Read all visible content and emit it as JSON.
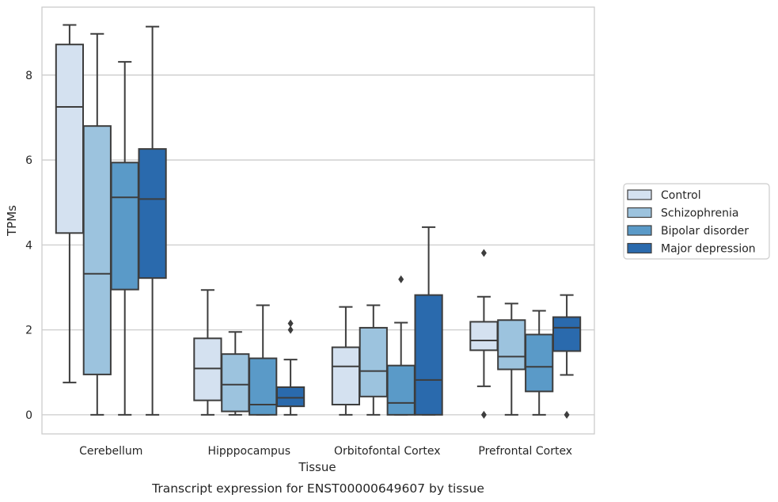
{
  "chart_data": {
    "type": "box",
    "caption": "Transcript expression for ENST00000649607 by tissue",
    "xlabel": "Tissue",
    "ylabel": "TPMs",
    "ylim": [
      -0.45,
      9.6
    ],
    "yticks": [
      0,
      2,
      4,
      6,
      8
    ],
    "grid": "horizontal",
    "legend_position": "right",
    "categories": [
      "Cerebellum",
      "Hipppocampus",
      "Orbitofontal Cortex",
      "Prefrontal Cortex"
    ],
    "series": [
      {
        "name": "Control",
        "color": "#d4e1f0",
        "boxes": [
          {
            "whislo": 0.76,
            "q1": 4.28,
            "med": 7.25,
            "q3": 8.72,
            "whishi": 9.18,
            "fliers": []
          },
          {
            "whislo": 0.0,
            "q1": 0.34,
            "med": 1.09,
            "q3": 1.8,
            "whishi": 2.94,
            "fliers": []
          },
          {
            "whislo": 0.0,
            "q1": 0.24,
            "med": 1.14,
            "q3": 1.59,
            "whishi": 2.54,
            "fliers": []
          },
          {
            "whislo": 0.67,
            "q1": 1.52,
            "med": 1.75,
            "q3": 2.19,
            "whishi": 2.78,
            "fliers": [
              0.0,
              3.81
            ]
          }
        ]
      },
      {
        "name": "Schizophrenia",
        "color": "#9cc3de",
        "boxes": [
          {
            "whislo": 0.0,
            "q1": 0.95,
            "med": 3.32,
            "q3": 6.8,
            "whishi": 8.97,
            "fliers": []
          },
          {
            "whislo": 0.0,
            "q1": 0.08,
            "med": 0.71,
            "q3": 1.43,
            "whishi": 1.95,
            "fliers": []
          },
          {
            "whislo": 0.0,
            "q1": 0.43,
            "med": 1.03,
            "q3": 2.05,
            "whishi": 2.58,
            "fliers": []
          },
          {
            "whislo": 0.0,
            "q1": 1.07,
            "med": 1.37,
            "q3": 2.23,
            "whishi": 2.62,
            "fliers": []
          }
        ]
      },
      {
        "name": "Bipolar disorder",
        "color": "#5a9ac8",
        "boxes": [
          {
            "whislo": 0.0,
            "q1": 2.95,
            "med": 5.12,
            "q3": 5.94,
            "whishi": 8.31,
            "fliers": []
          },
          {
            "whislo": 0.0,
            "q1": 0.0,
            "med": 0.24,
            "q3": 1.33,
            "whishi": 2.58,
            "fliers": []
          },
          {
            "whislo": 0.0,
            "q1": 0.0,
            "med": 0.28,
            "q3": 1.16,
            "whishi": 2.17,
            "fliers": [
              3.19
            ]
          },
          {
            "whislo": 0.0,
            "q1": 0.55,
            "med": 1.13,
            "q3": 1.89,
            "whishi": 2.45,
            "fliers": []
          }
        ]
      },
      {
        "name": "Major depression",
        "color": "#2a6aad",
        "boxes": [
          {
            "whislo": 0.0,
            "q1": 3.22,
            "med": 5.08,
            "q3": 6.26,
            "whishi": 9.14,
            "fliers": []
          },
          {
            "whislo": 0.0,
            "q1": 0.2,
            "med": 0.4,
            "q3": 0.65,
            "whishi": 1.3,
            "fliers": [
              2.0,
              2.15
            ]
          },
          {
            "whislo": 0.0,
            "q1": 0.0,
            "med": 0.82,
            "q3": 2.82,
            "whishi": 4.42,
            "fliers": []
          },
          {
            "whislo": 0.94,
            "q1": 1.5,
            "med": 2.05,
            "q3": 2.3,
            "whishi": 2.82,
            "fliers": [
              0.0
            ]
          }
        ]
      }
    ]
  }
}
